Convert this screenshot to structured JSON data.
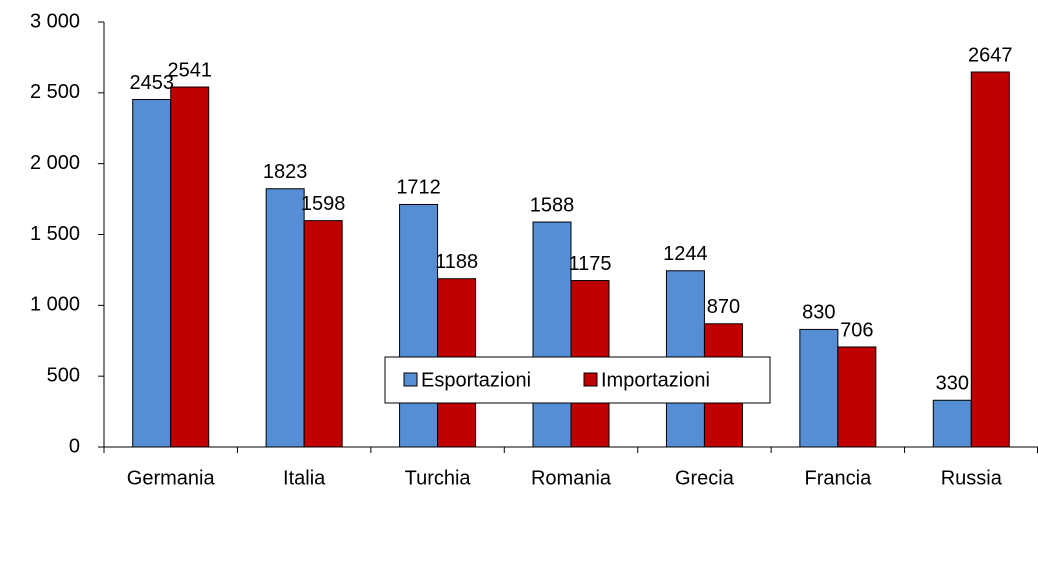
{
  "chart_data": {
    "type": "bar",
    "categories": [
      "Germania",
      "Italia",
      "Turchia",
      "Romania",
      "Grecia",
      "Francia",
      "Russia"
    ],
    "series": [
      {
        "name": "Esportazioni",
        "color": "#558ed5",
        "values": [
          2453,
          1823,
          1712,
          1588,
          1244,
          830,
          330
        ]
      },
      {
        "name": "Importazioni",
        "color": "#c00000",
        "values": [
          2541,
          1598,
          1188,
          1175,
          870,
          706,
          2647
        ]
      }
    ],
    "ylim": [
      0,
      3000
    ],
    "yticks": [
      0,
      500,
      {
        "value": 1000,
        "label": "1 000"
      },
      {
        "value": 1500,
        "label": "1 500"
      },
      {
        "value": 2000,
        "label": "2 000"
      },
      {
        "value": 2500,
        "label": "2 500"
      },
      {
        "value": 3000,
        "label": "3 000"
      }
    ],
    "grid": false,
    "legend": "bottom"
  }
}
